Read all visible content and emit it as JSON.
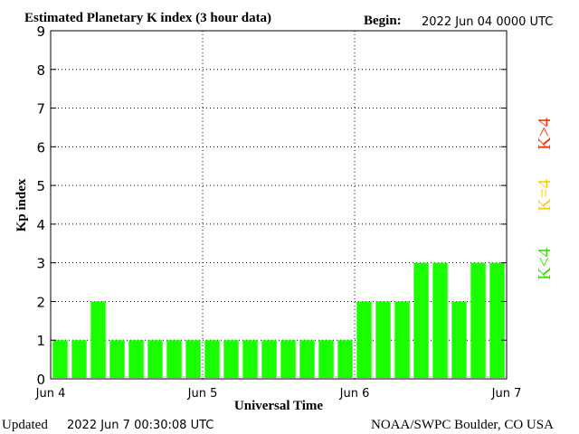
{
  "chart_data": {
    "type": "bar",
    "title": "Estimated Planetary K index (3 hour data)",
    "begin_label": "Begin:",
    "begin_value": "2022 Jun 04 0000 UTC",
    "xlabel": "Universal Time",
    "ylabel": "Kp index",
    "ylim": [
      0,
      9
    ],
    "yticks": [
      "0",
      "1",
      "2",
      "3",
      "4",
      "5",
      "6",
      "7",
      "8",
      "9"
    ],
    "xticks": [
      "Jun 4",
      "Jun 5",
      "Jun 6",
      "Jun 7"
    ],
    "grid": true,
    "values": [
      1,
      1,
      2,
      1,
      1,
      1,
      1,
      1,
      1,
      1,
      1,
      1,
      1,
      1,
      1,
      1,
      2,
      2,
      2,
      3,
      3,
      2,
      3,
      3
    ],
    "bar_color": "#1aff00",
    "legend": [
      {
        "label": "K<4",
        "color": "#33e000"
      },
      {
        "label": "K=4",
        "color": "#ffcc00"
      },
      {
        "label": "K>4",
        "color": "#ff3300"
      }
    ]
  },
  "footer": {
    "updated_label": "Updated",
    "updated_value": "2022 Jun  7 00:30:08 UTC",
    "source": "NOAA/SWPC Boulder, CO USA"
  }
}
